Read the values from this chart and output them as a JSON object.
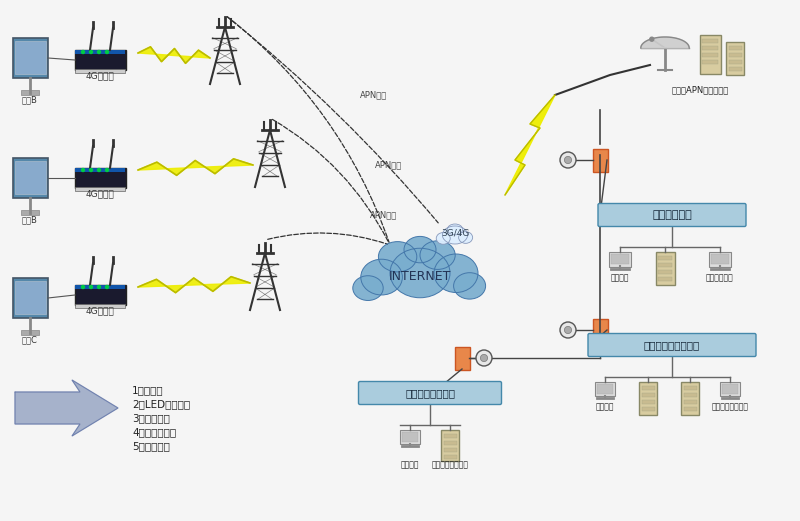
{
  "bg_color": "#f5f5f5",
  "left_labels": [
    "站点B",
    "站点B",
    "站点C"
  ],
  "router_label": "4G路由器",
  "apn_labels": [
    "APN专网",
    "APN专网",
    "APN专网"
  ],
  "internet_label": "INTERNET",
  "cloud_label": "3G/4G",
  "server_label": "运营商APN专网服务器",
  "ad_system_label": "公交广告系统",
  "video_system_label": "公交站视频监控平台",
  "bus_system_label": "公交定位导航专网",
  "monitor_label": "监控中心",
  "ad_publish_label": "广告发布中心",
  "data_analysis_label": "数据分析统计中心",
  "video_monitor_label": "视屏监控服务中心",
  "list_items": [
    "1，摄像头",
    "2，LED广告显示",
    "3，天气预报",
    "4，公交线路图",
    "5，公交报站"
  ],
  "cloud_color": "#6699cc",
  "box_color_blue": "#7ab3d0",
  "box_color_orange": "#e8874a",
  "line_color": "#444444",
  "dashed_color": "#333333",
  "lightning_color": "#eeee00",
  "text_color": "#222222",
  "arrow_color": "#8899bb"
}
